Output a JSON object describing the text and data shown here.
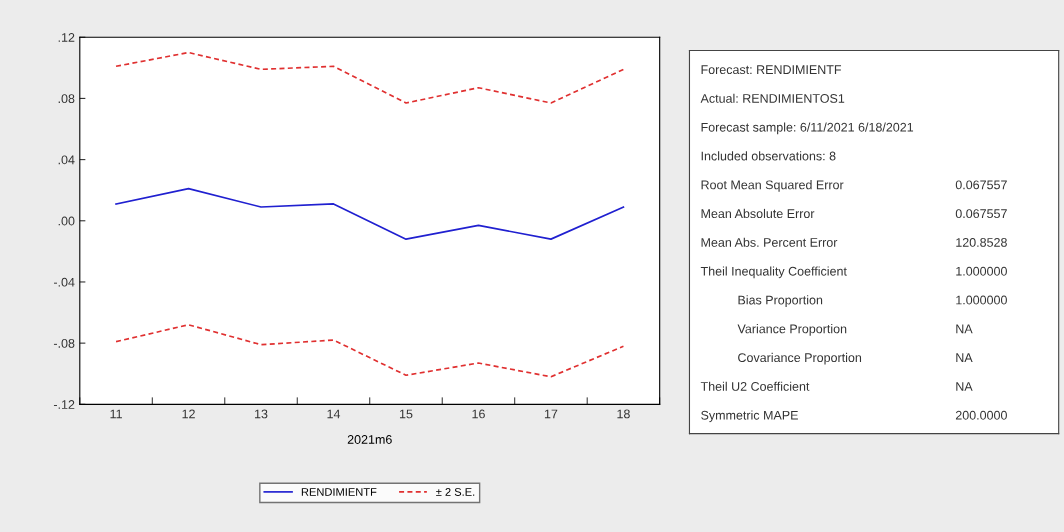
{
  "chart_data": [
    {
      "type": "line",
      "xlabel": "2021m6",
      "categories": [
        "11",
        "12",
        "13",
        "14",
        "15",
        "16",
        "17",
        "18"
      ],
      "series": [
        {
          "name": "RENDIMIENTF",
          "color": "#2020d0",
          "line_style": "solid",
          "values": [
            0.011,
            0.021,
            0.009,
            0.011,
            -0.012,
            -0.003,
            -0.012,
            0.009
          ]
        },
        {
          "name": "± 2 S.E.",
          "color": "#e03030",
          "line_style": "dashed",
          "values": [
            0.101,
            0.11,
            0.099,
            0.101,
            0.077,
            0.087,
            0.077,
            0.099
          ]
        },
        {
          "color": "#e03030",
          "line_style": "dashed",
          "values": [
            -0.079,
            -0.068,
            -0.081,
            -0.078,
            -0.101,
            -0.093,
            -0.102,
            -0.082
          ]
        }
      ],
      "ylim": [
        -0.12,
        0.12
      ],
      "yticks": [
        {
          "value": -0.12,
          "label": "-.12"
        },
        {
          "value": -0.08,
          "label": "-.08"
        },
        {
          "value": -0.04,
          "label": "-.04"
        },
        {
          "value": 0,
          "label": ".00"
        },
        {
          "value": 0.04,
          "label": ".04"
        },
        {
          "value": 0.08,
          "label": ".08"
        },
        {
          "value": 0.12,
          "label": ".12"
        }
      ],
      "grid": false,
      "legend": "bottom",
      "marker": "none"
    },
    {
      "type": "other",
      "annotations": [
        "Forecast: RENDIMIENTF",
        "Actual: RENDIMIENTOS1",
        "Forecast sample: 6/11/2021 6/18/2021",
        "Included observations: 8",
        "Root Mean Squared Error\t0.067557",
        "Mean Absolute Error\t0.067557",
        "Mean Abs. Percent Error\t120.8528",
        "Theil Inequality Coefficient\t1.000000",
        "    Bias Proportion\t1.000000",
        "    Variance Proportion\tNA",
        "    Covariance Proportion\tNA",
        "Theil U2 Coefficient\tNA",
        "Symmetric MAPE\t200.0000"
      ]
    }
  ]
}
